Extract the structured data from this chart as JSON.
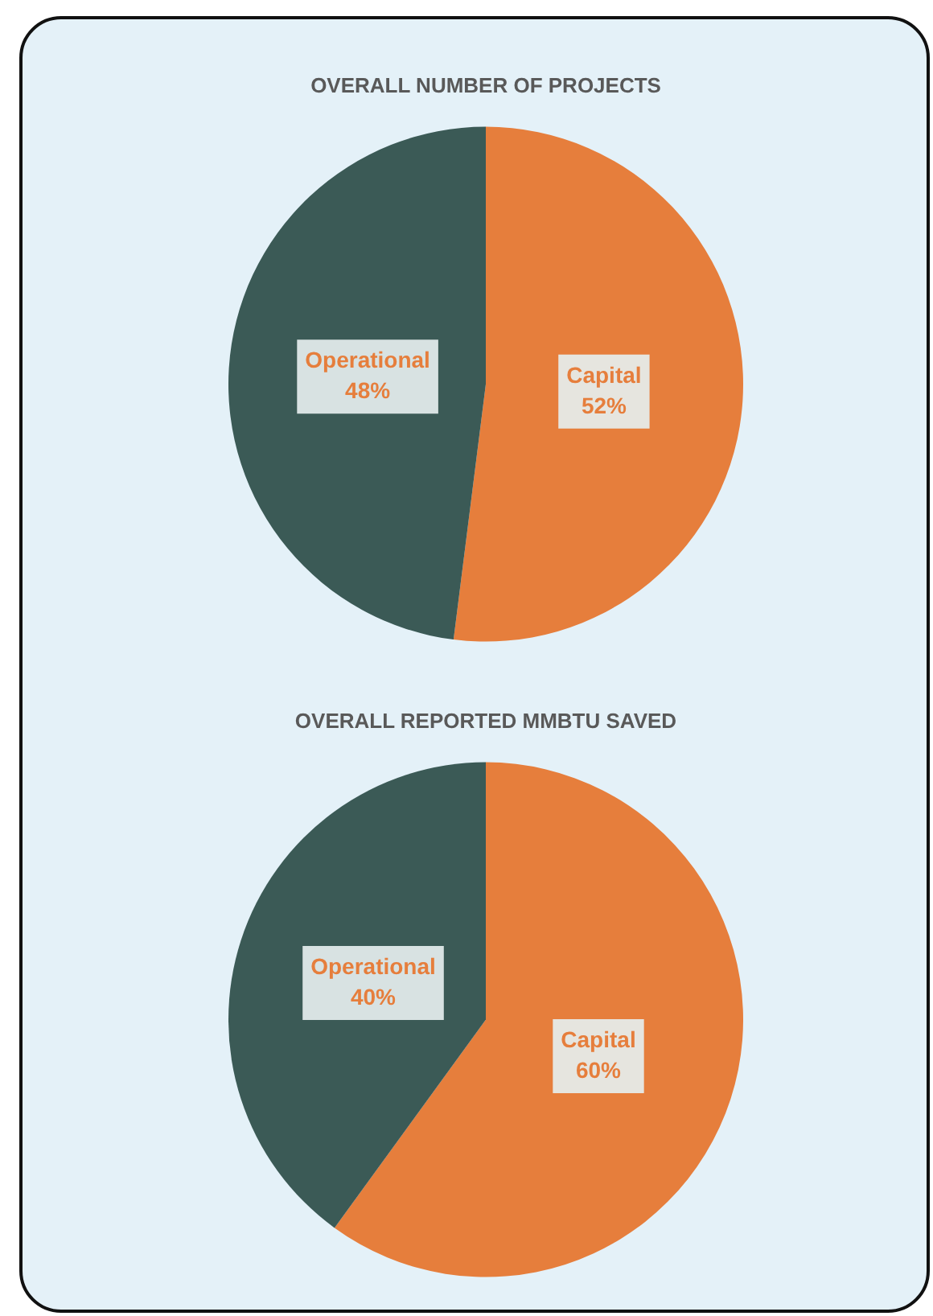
{
  "chart_data": [
    {
      "type": "pie",
      "title": "OVERALL NUMBER OF PROJECTS",
      "categories": [
        "Capital",
        "Operational"
      ],
      "values": [
        52,
        48
      ],
      "colors": [
        "#e67e3c",
        "#3b5a56"
      ],
      "value_labels": [
        "52%",
        "48%"
      ],
      "legend": false
    },
    {
      "type": "pie",
      "title": "OVERALL REPORTED MMBTU SAVED",
      "categories": [
        "Capital",
        "Operational"
      ],
      "values": [
        60,
        40
      ],
      "colors": [
        "#e67e3c",
        "#3b5a56"
      ],
      "value_labels": [
        "60%",
        "40%"
      ],
      "legend": false
    }
  ]
}
